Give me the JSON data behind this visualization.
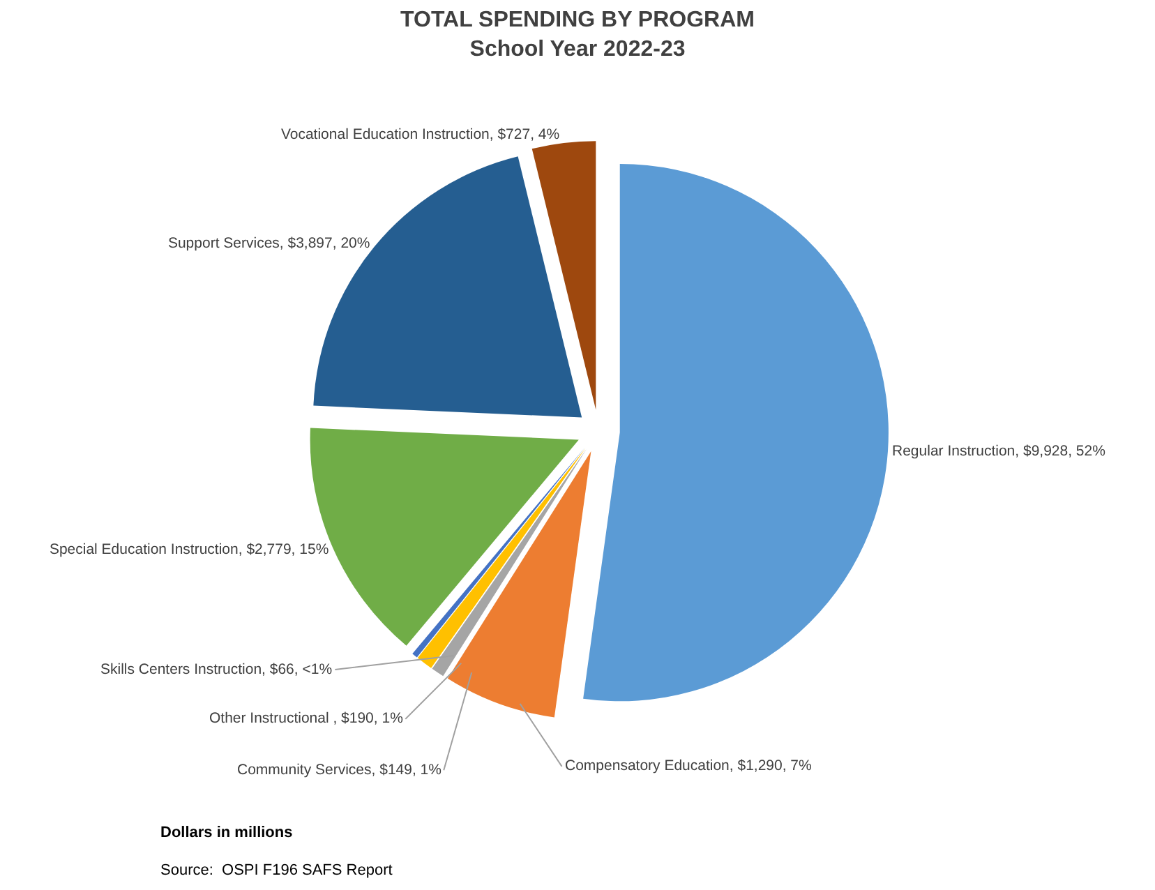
{
  "chart_data": {
    "type": "pie",
    "title": "TOTAL SPENDING BY PROGRAM",
    "subtitle": "School Year 2022-23",
    "categories": [
      "Regular Instruction",
      "Compensatory Education",
      "Community Services",
      "Other Instructional ",
      "Skills Centers Instruction",
      "Special Education Instruction",
      "Support Services",
      "Vocational Education Instruction"
    ],
    "values": [
      9928,
      1290,
      149,
      190,
      66,
      2779,
      3897,
      727
    ],
    "value_labels": [
      "$9,928, 52%",
      "$1,290, 7%",
      "$149, 1%",
      "$190, 1%",
      "$66, <1%",
      "$2,779, 15%",
      "$3,897, 20%",
      "$727, 4%"
    ],
    "colors": [
      "#5b9bd5",
      "#ed7d31",
      "#a5a5a5",
      "#ffc000",
      "#4472c4",
      "#70ad47",
      "#255e91",
      "#9e480e"
    ],
    "annotations": [
      "Dollars in millions",
      "Source:  OSPI F196 SAFS Report"
    ]
  }
}
